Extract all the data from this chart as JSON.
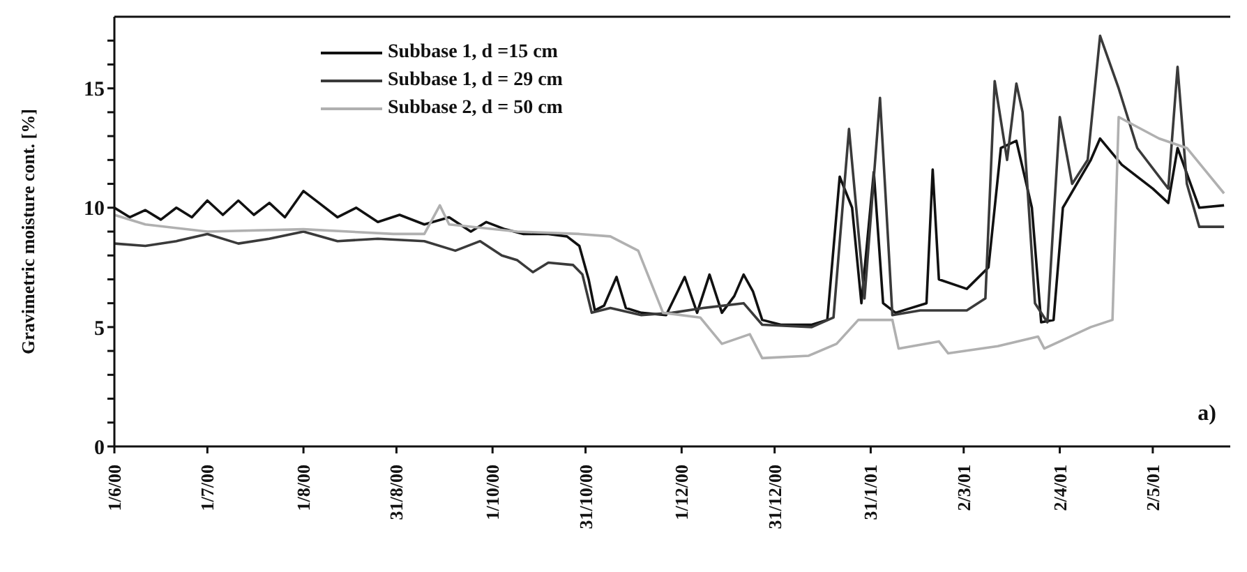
{
  "chart_data": {
    "type": "line",
    "ylabel": "Gravimetric moisture cont. [%]",
    "annotations": [
      "a)"
    ],
    "xlim": [
      "2000-06-01",
      "2001-05-27"
    ],
    "xticks": [
      {
        "value": "2000-06-01",
        "label": "1/6/00"
      },
      {
        "value": "2000-07-01",
        "label": "1/7/00"
      },
      {
        "value": "2000-08-01",
        "label": "1/8/00"
      },
      {
        "value": "2000-08-31",
        "label": "31/8/00"
      },
      {
        "value": "2000-10-01",
        "label": "1/10/00"
      },
      {
        "value": "2000-10-31",
        "label": "31/10/00"
      },
      {
        "value": "2000-12-01",
        "label": "1/12/00"
      },
      {
        "value": "2000-12-31",
        "label": "31/12/00"
      },
      {
        "value": "2001-01-31",
        "label": "31/1/01"
      },
      {
        "value": "2001-03-02",
        "label": "2/3/01"
      },
      {
        "value": "2001-04-02",
        "label": "2/4/01"
      },
      {
        "value": "2001-05-02",
        "label": "2/5/01"
      }
    ],
    "ylim": [
      0,
      18
    ],
    "yticks": [
      0,
      {
        "value": 1,
        "label": null
      },
      {
        "value": 2,
        "label": null
      },
      {
        "value": 3,
        "label": null
      },
      {
        "value": 4,
        "label": null
      },
      5,
      {
        "value": 6,
        "label": null
      },
      {
        "value": 7,
        "label": null
      },
      {
        "value": 8,
        "label": null
      },
      {
        "value": 9,
        "label": null
      },
      10,
      {
        "value": 11,
        "label": null
      },
      {
        "value": 12,
        "label": null
      },
      {
        "value": 13,
        "label": null
      },
      {
        "value": 14,
        "label": null
      },
      15,
      {
        "value": 16,
        "label": null
      },
      {
        "value": 17,
        "label": null
      }
    ],
    "grid": false,
    "legend": "top left",
    "marker": "none",
    "line_style": "solid",
    "series": [
      {
        "name": "Subbase 1, d =15 cm",
        "color": "#111111",
        "x": [
          "2000-06-01",
          "2000-06-06",
          "2000-06-11",
          "2000-06-16",
          "2000-06-21",
          "2000-06-26",
          "2000-07-01",
          "2000-07-06",
          "2000-07-11",
          "2000-07-16",
          "2000-07-21",
          "2000-07-26",
          "2000-08-01",
          "2000-08-06",
          "2000-08-12",
          "2000-08-18",
          "2000-08-25",
          "2000-09-01",
          "2000-09-09",
          "2000-09-17",
          "2000-09-24",
          "2000-09-29",
          "2000-10-05",
          "2000-10-11",
          "2000-10-19",
          "2000-10-25",
          "2000-10-29",
          "2000-11-01",
          "2000-11-03",
          "2000-11-06",
          "2000-11-10",
          "2000-11-13",
          "2000-11-18",
          "2000-11-26",
          "2000-12-02",
          "2000-12-06",
          "2000-12-10",
          "2000-12-14",
          "2000-12-18",
          "2000-12-21",
          "2000-12-24",
          "2000-12-27",
          "2001-01-02",
          "2001-01-12",
          "2001-01-17",
          "2001-01-21",
          "2001-01-25",
          "2001-01-28",
          "2001-02-01",
          "2001-02-04",
          "2001-02-08",
          "2001-02-18",
          "2001-02-20",
          "2001-02-22",
          "2001-03-03",
          "2001-03-10",
          "2001-03-14",
          "2001-03-19",
          "2001-03-24",
          "2001-03-27",
          "2001-03-31",
          "2001-04-03",
          "2001-04-12",
          "2001-04-15",
          "2001-04-22",
          "2001-05-02",
          "2001-05-07",
          "2001-05-10",
          "2001-05-17",
          "2001-05-25"
        ],
        "values": [
          10.0,
          9.6,
          9.9,
          9.5,
          10.0,
          9.6,
          10.3,
          9.7,
          10.3,
          9.7,
          10.2,
          9.6,
          10.7,
          10.2,
          9.6,
          10.0,
          9.4,
          9.7,
          9.3,
          9.6,
          9.0,
          9.4,
          9.1,
          8.9,
          8.9,
          8.8,
          8.4,
          7.0,
          5.7,
          5.9,
          7.1,
          5.8,
          5.6,
          5.5,
          7.1,
          5.6,
          7.2,
          5.6,
          6.3,
          7.2,
          6.5,
          5.3,
          5.1,
          5.1,
          5.3,
          11.3,
          10.0,
          6.0,
          11.5,
          6.0,
          5.6,
          6.0,
          11.6,
          7.0,
          6.6,
          7.5,
          12.5,
          12.8,
          10.0,
          5.2,
          5.3,
          10.0,
          12.0,
          12.9,
          11.8,
          10.8,
          10.2,
          12.5,
          10.0,
          10.1
        ]
      },
      {
        "name": "Subbase 1, d = 29 cm",
        "color": "#3a3a3a",
        "x": [
          "2000-06-01",
          "2000-06-11",
          "2000-06-21",
          "2000-07-01",
          "2000-07-11",
          "2000-07-21",
          "2000-08-01",
          "2000-08-12",
          "2000-08-25",
          "2000-09-09",
          "2000-09-19",
          "2000-09-27",
          "2000-10-04",
          "2000-10-09",
          "2000-10-14",
          "2000-10-19",
          "2000-10-27",
          "2000-10-30",
          "2000-11-02",
          "2000-11-08",
          "2000-11-18",
          "2000-11-28",
          "2000-12-08",
          "2000-12-21",
          "2000-12-27",
          "2001-01-12",
          "2001-01-19",
          "2001-01-24",
          "2001-01-29",
          "2001-02-03",
          "2001-02-07",
          "2001-02-16",
          "2001-03-03",
          "2001-03-09",
          "2001-03-12",
          "2001-03-16",
          "2001-03-19",
          "2001-03-21",
          "2001-03-25",
          "2001-03-29",
          "2001-04-02",
          "2001-04-06",
          "2001-04-11",
          "2001-04-15",
          "2001-04-21",
          "2001-04-27",
          "2001-05-07",
          "2001-05-10",
          "2001-05-13",
          "2001-05-17",
          "2001-05-25"
        ],
        "values": [
          8.5,
          8.4,
          8.6,
          8.9,
          8.5,
          8.7,
          9.0,
          8.6,
          8.7,
          8.6,
          8.2,
          8.6,
          8.0,
          7.8,
          7.3,
          7.7,
          7.6,
          7.2,
          5.6,
          5.8,
          5.5,
          5.6,
          5.8,
          6.0,
          5.1,
          5.0,
          5.4,
          13.3,
          6.2,
          14.6,
          5.5,
          5.7,
          5.7,
          6.2,
          15.3,
          12.0,
          15.2,
          14.0,
          6.0,
          5.2,
          13.8,
          11.0,
          12.0,
          17.2,
          15.0,
          12.5,
          10.8,
          15.9,
          11.0,
          9.2,
          9.2
        ]
      },
      {
        "name": "Subbase 2, d = 50 cm",
        "color": "#b0b0b0",
        "x": [
          "2000-06-01",
          "2000-06-11",
          "2000-07-01",
          "2000-08-01",
          "2000-08-30",
          "2000-09-09",
          "2000-09-14",
          "2000-09-17",
          "2000-10-09",
          "2000-10-29",
          "2000-11-08",
          "2000-11-17",
          "2000-11-25",
          "2000-12-07",
          "2000-12-14",
          "2000-12-23",
          "2000-12-27",
          "2001-01-11",
          "2001-01-20",
          "2001-01-27",
          "2001-02-07",
          "2001-02-09",
          "2001-02-22",
          "2001-02-25",
          "2001-03-13",
          "2001-03-26",
          "2001-03-28",
          "2001-04-12",
          "2001-04-19",
          "2001-04-21",
          "2001-05-04",
          "2001-05-13",
          "2001-05-25"
        ],
        "values": [
          9.7,
          9.3,
          9.0,
          9.1,
          8.9,
          8.9,
          10.1,
          9.3,
          9.0,
          8.9,
          8.8,
          8.2,
          5.6,
          5.4,
          4.3,
          4.7,
          3.7,
          3.8,
          4.3,
          5.3,
          5.3,
          4.1,
          4.4,
          3.9,
          4.2,
          4.6,
          4.1,
          5.0,
          5.3,
          13.8,
          12.9,
          12.5,
          10.6
        ]
      }
    ]
  }
}
